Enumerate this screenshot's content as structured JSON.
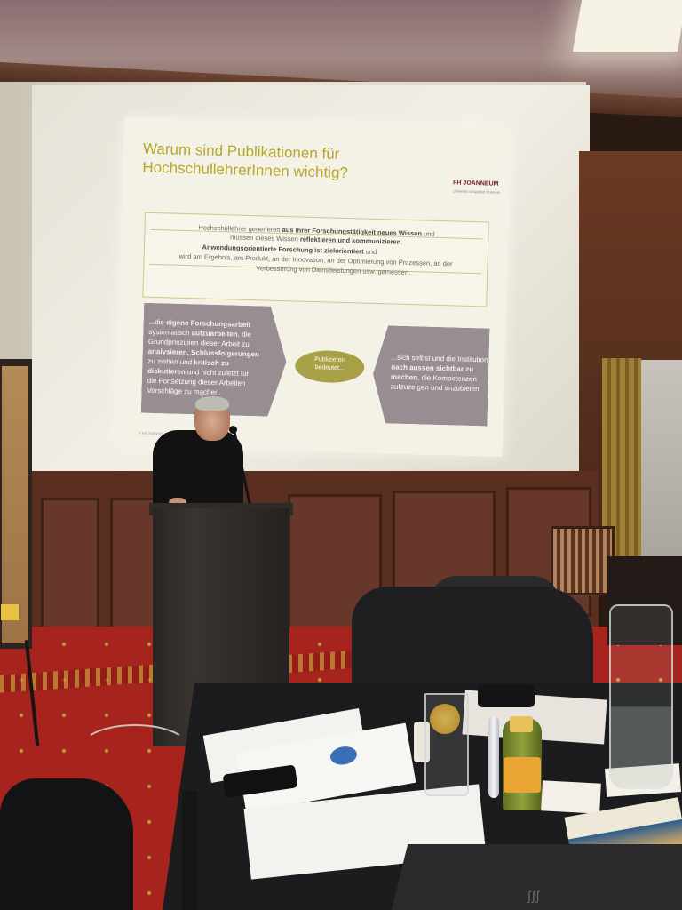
{
  "slide": {
    "title_line1": "Warum sind Publikationen für",
    "title_line2": "HochschullehrerInnen wichtig?",
    "logo": "FH JOANNEUM",
    "logo_sub": "University of Applied Sciences",
    "box_lines": [
      {
        "pre": "Hochschullehrer  generieren ",
        "bold": "aus ihrer Forschungstätigkeit neues Wissen",
        "post": " und"
      },
      {
        "pre": "müssen dieses Wissen ",
        "bold": "reflektieren und kommunizieren",
        "post": "."
      },
      {
        "pre": "",
        "bold": "Anwendungsorientierte Forschung ist zielorientiert",
        "post": " und"
      },
      {
        "pre": "wird am Ergebnis, am Produkt, an der Innovation, an der Optimierung von Prozessen, an der",
        "bold": "",
        "post": ""
      },
      {
        "pre": "Verbesserung von Dienstleistungen  usw. gemessen.",
        "bold": "",
        "post": ""
      }
    ],
    "left_hex_lines": [
      {
        "pre": "...die ",
        "bold": "eigene Forschungsarbeit",
        "post": ""
      },
      {
        "pre": "systematisch ",
        "bold": "aufzuarbeiten",
        "post": ", die"
      },
      {
        "pre": "Grundprinzipien  dieser Arbeit zu",
        "bold": "",
        "post": ""
      },
      {
        "pre": "",
        "bold": "analysieren, Schlussfolgerungen",
        "post": ""
      },
      {
        "pre": "zu ziehen  und ",
        "bold": "kritisch zu",
        "post": ""
      },
      {
        "pre": "",
        "bold": "diskutieren",
        "post": " und nicht zuletzt für"
      },
      {
        "pre": "die Fortsetzung dieser Arbeiten",
        "bold": "",
        "post": ""
      },
      {
        "pre": "Vorschläge zu machen.",
        "bold": "",
        "post": ""
      }
    ],
    "center_label_line1": "Publizieren",
    "center_label_line2": "bedeutet...",
    "right_hex_lines": [
      {
        "pre": "...sich selbst und die Institution",
        "bold": "",
        "post": ""
      },
      {
        "pre": "",
        "bold": "nach aussen sichtbar zu",
        "post": ""
      },
      {
        "pre": "",
        "bold": "machen",
        "post": ", die Kompetenzen"
      },
      {
        "pre": "aufzuzeigen und anzubieten",
        "bold": "",
        "post": ""
      }
    ],
    "footer": "© FH JOANNEUM"
  },
  "laptop_logo": "∫∫∫",
  "colors": {
    "title": "#b5a82b",
    "shape_fill": "#988d91",
    "ellipse_fill": "#a8a046",
    "carpet": "#a6241d",
    "wood_panel": "#5a2f1f"
  }
}
